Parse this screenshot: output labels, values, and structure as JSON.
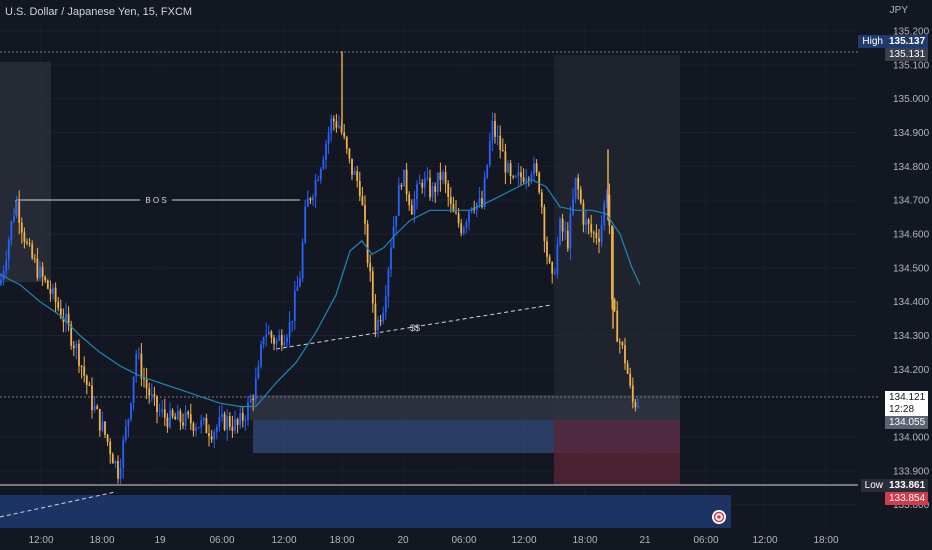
{
  "header": {
    "title": "U.S. Dollar / Japanese Yen, 15, FXCM",
    "currency": "JPY"
  },
  "colors": {
    "background": "#131722",
    "bull_body": "#2962ff",
    "bear_body": "#f0b24a",
    "ma_line": "#1e88b8",
    "demand_zone": "#3d5b9b",
    "premium_zone": "#5a2233",
    "high_tag": "#1e3a6e",
    "price_tag": "#3b3f4a",
    "low_tag": "#d23b4b"
  },
  "price_scale": {
    "ticks": [
      "135.200",
      "135.100",
      "135.000",
      "134.900",
      "134.800",
      "134.700",
      "134.600",
      "134.500",
      "134.400",
      "134.300",
      "134.200",
      "134.000",
      "133.900",
      "133.800"
    ],
    "high_label": "High",
    "high_value": "135.137",
    "open_value": "135.131",
    "current_price": "134.121",
    "countdown": "12:28",
    "zone_price": "134.055",
    "low_label": "Low",
    "low_value": "133.861",
    "alert_price": "133.854"
  },
  "time_axis": {
    "labels": [
      "12:00",
      "18:00",
      "19",
      "06:00",
      "12:00",
      "18:00",
      "20",
      "06:00",
      "12:00",
      "18:00",
      "21",
      "06:00",
      "12:00",
      "18:00"
    ]
  },
  "annotations": {
    "bos": "B O S",
    "liquidity": "$$"
  },
  "chart_data": {
    "type": "candlestick",
    "symbol": "USDJPY",
    "interval": "15",
    "ylim": [
      133.72,
      135.28
    ],
    "close_path": [
      [
        0,
        134.45
      ],
      [
        16,
        134.7
      ],
      [
        28,
        134.55
      ],
      [
        40,
        134.48
      ],
      [
        52,
        134.42
      ],
      [
        64,
        134.35
      ],
      [
        78,
        134.25
      ],
      [
        92,
        134.1
      ],
      [
        106,
        134.0
      ],
      [
        118,
        133.9
      ],
      [
        128,
        134.05
      ],
      [
        136,
        134.25
      ],
      [
        146,
        134.15
      ],
      [
        156,
        134.08
      ],
      [
        170,
        134.05
      ],
      [
        184,
        134.05
      ],
      [
        198,
        134.04
      ],
      [
        212,
        134.02
      ],
      [
        226,
        134.05
      ],
      [
        238,
        134.03
      ],
      [
        250,
        134.1
      ],
      [
        258,
        134.18
      ],
      [
        264,
        134.32
      ],
      [
        276,
        134.28
      ],
      [
        290,
        134.33
      ],
      [
        300,
        134.48
      ],
      [
        306,
        134.68
      ],
      [
        316,
        134.76
      ],
      [
        324,
        134.85
      ],
      [
        332,
        134.94
      ],
      [
        340,
        134.92
      ],
      [
        350,
        134.8
      ],
      [
        360,
        134.74
      ],
      [
        368,
        134.52
      ],
      [
        376,
        134.32
      ],
      [
        384,
        134.4
      ],
      [
        392,
        134.6
      ],
      [
        402,
        134.78
      ],
      [
        412,
        134.68
      ],
      [
        422,
        134.76
      ],
      [
        432,
        134.72
      ],
      [
        442,
        134.78
      ],
      [
        452,
        134.66
      ],
      [
        462,
        134.62
      ],
      [
        472,
        134.7
      ],
      [
        482,
        134.68
      ],
      [
        492,
        134.92
      ],
      [
        502,
        134.84
      ],
      [
        512,
        134.74
      ],
      [
        524,
        134.78
      ],
      [
        532,
        134.8
      ],
      [
        540,
        134.74
      ],
      [
        546,
        134.56
      ],
      [
        552,
        134.45
      ],
      [
        560,
        134.62
      ],
      [
        568,
        134.58
      ],
      [
        576,
        134.76
      ],
      [
        584,
        134.64
      ],
      [
        592,
        134.6
      ],
      [
        600,
        134.6
      ],
      [
        608,
        134.76
      ],
      [
        612,
        134.38
      ],
      [
        618,
        134.3
      ],
      [
        626,
        134.22
      ],
      [
        632,
        134.1
      ],
      [
        640,
        134.11
      ]
    ],
    "moving_average_path": [
      [
        0,
        134.48
      ],
      [
        20,
        134.45
      ],
      [
        40,
        134.4
      ],
      [
        60,
        134.36
      ],
      [
        80,
        134.3
      ],
      [
        100,
        134.25
      ],
      [
        120,
        134.21
      ],
      [
        140,
        134.18
      ],
      [
        160,
        134.16
      ],
      [
        180,
        134.14
      ],
      [
        200,
        134.12
      ],
      [
        220,
        134.1
      ],
      [
        240,
        134.09
      ],
      [
        256,
        134.09
      ],
      [
        276,
        134.16
      ],
      [
        296,
        134.22
      ],
      [
        316,
        134.31
      ],
      [
        336,
        134.42
      ],
      [
        350,
        134.55
      ],
      [
        362,
        134.58
      ],
      [
        372,
        134.54
      ],
      [
        384,
        134.56
      ],
      [
        396,
        134.6
      ],
      [
        410,
        134.64
      ],
      [
        430,
        134.67
      ],
      [
        450,
        134.67
      ],
      [
        470,
        134.67
      ],
      [
        492,
        134.7
      ],
      [
        512,
        134.73
      ],
      [
        532,
        134.76
      ],
      [
        546,
        134.74
      ],
      [
        560,
        134.68
      ],
      [
        576,
        134.67
      ],
      [
        592,
        134.67
      ],
      [
        606,
        134.66
      ],
      [
        620,
        134.6
      ],
      [
        632,
        134.5
      ],
      [
        640,
        134.45
      ]
    ],
    "levels": {
      "high": 135.137,
      "low": 133.861,
      "current": 134.121,
      "bos": 134.7
    },
    "zones": [
      {
        "name": "demand",
        "from_price": 133.955,
        "to_price": 134.055
      },
      {
        "name": "discount",
        "from_price": 134.055,
        "to_price": 134.13
      },
      {
        "name": "premium",
        "from_price": 133.86,
        "to_price": 134.055
      }
    ]
  }
}
